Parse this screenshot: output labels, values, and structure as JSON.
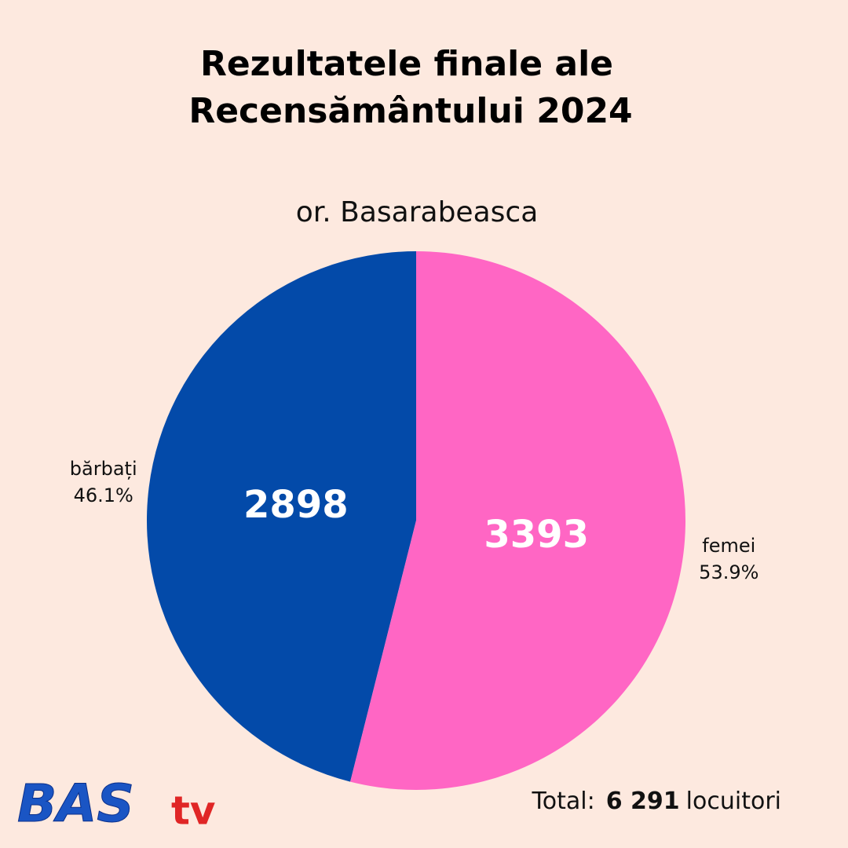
{
  "chart_data": {
    "type": "pie",
    "title": [
      "Rezultatele finale ale",
      "Recensământului 2024"
    ],
    "subtitle": "or. Basarabeasca",
    "categories": [
      "bărbați",
      "femei"
    ],
    "values": [
      2898,
      3393
    ],
    "shares": [
      46.1,
      53.9
    ],
    "share_labels": [
      "46.1%",
      "53.9%"
    ],
    "colors": [
      "#034aa9",
      "#ff66c4"
    ],
    "total_prefix": "Total:",
    "total": 6291,
    "total_text": "6 291",
    "total_suffix": "locuitori",
    "logo": {
      "main": "BAS",
      "sub": "tv"
    }
  }
}
